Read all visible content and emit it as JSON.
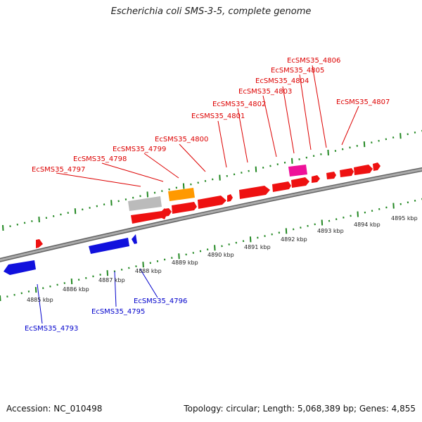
{
  "title": "Escherichia coli SMS-3-5, complete genome",
  "footer": {
    "accession": "Accession: NC_010498",
    "summary": "Topology: circular; Length: 5,068,389 bp; Genes: 4,855"
  },
  "colors": {
    "forward_gene": "#ee1111",
    "reverse_gene": "#1111dd",
    "orange_feature": "#ff9900",
    "gray_feature": "#bbbbbb",
    "pink_feature": "#ee1199",
    "backbone": "#888888",
    "tick": "#228822"
  },
  "kbp_labels": [
    "4885 kbp",
    "4886 kbp",
    "4887 kbp",
    "4888 kbp",
    "4889 kbp",
    "4890 kbp",
    "4891 kbp",
    "4892 kbp",
    "4893 kbp",
    "4894 kbp",
    "4895 kbp"
  ],
  "forward_labels": [
    "EcSMS35_4797",
    "EcSMS35_4798",
    "EcSMS35_4799",
    "EcSMS35_4800",
    "EcSMS35_4801",
    "EcSMS35_4802",
    "EcSMS35_4803",
    "EcSMS35_4804",
    "EcSMS35_4805",
    "EcSMS35_4806",
    "EcSMS35_4807"
  ],
  "reverse_labels": [
    "EcSMS35_4793",
    "EcSMS35_4795",
    "EcSMS35_4796"
  ]
}
